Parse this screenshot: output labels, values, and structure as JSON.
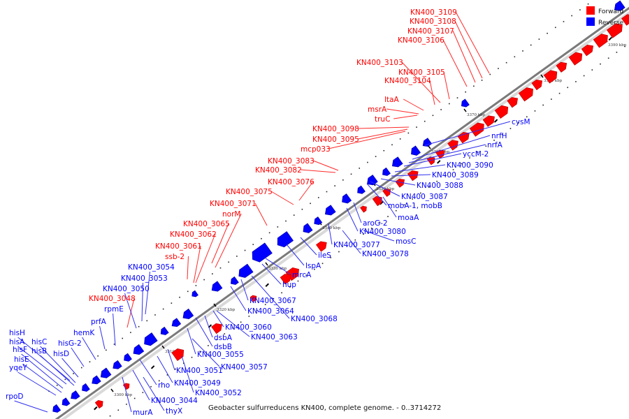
{
  "legend": {
    "forward_label": "Forward",
    "reverse_label": "Reverse",
    "forward_color": "#ff0000",
    "reverse_color": "#0000ff"
  },
  "caption": "Geobacter sulfurreducens KN400, complete genome. - 0..3714272",
  "colors": {
    "forward": "#ff0000",
    "reverse": "#0000ff",
    "forward_line": "#ff2a2a",
    "reverse_line": "#3030ee",
    "backbone": "#7a7a7a",
    "backbone_light": "#d9d9d9"
  },
  "ticks": [
    "3390 kbp",
    "3380 kbp",
    "3370 kbp",
    "3360 kbp",
    "3350 kbp",
    "3340 kbp",
    "3330 kbp",
    "3320 kbp",
    "3310 kbp",
    "3300 kbp"
  ],
  "forward_labels": [
    "KN400_3109",
    "KN400_3108",
    "KN400_3107",
    "KN400_3106",
    "KN400_3103",
    "KN400_3105",
    "KN400_3104",
    "ltaA",
    "msrA",
    "truC",
    "KN400_3098",
    "KN400_3095",
    "mcp033",
    "KN400_3083",
    "KN400_3082",
    "KN400_3076",
    "KN400_3075",
    "KN400_3071",
    "norM",
    "KN400_3065",
    "KN400_3062",
    "KN400_3061",
    "ssb-2",
    "KN400_3048"
  ],
  "reverse_labels": [
    "cysM",
    "nrfH",
    "nrfA",
    "yccM-2",
    "KN400_3090",
    "KN400_3089",
    "KN400_3088",
    "KN400_3087",
    "mobA-1, mobB",
    "moaA",
    "aroG-2",
    "KN400_3080",
    "mosC",
    "KN400_3077",
    "KN400_3078",
    "ileS",
    "lspA",
    "mrcA",
    "hup",
    "KN400_3067",
    "KN400_3064",
    "KN400_3068",
    "KN400_3060",
    "KN400_3063",
    "dsbA",
    "dsbB",
    "KN400_3055",
    "KN400_3057",
    "KN400_3051",
    "KN400_3049",
    "KN400_3052",
    "rho",
    "KN400_3044",
    "murA",
    "thyX",
    "KN400_3054",
    "KN400_3053",
    "KN400_3050",
    "rpmE",
    "prfA",
    "hemK",
    "hisG-2",
    "hisD",
    "hisH",
    "hisA",
    "hisC",
    "hisB",
    "hisF",
    "hisE",
    "yqeY",
    "rpoD"
  ]
}
